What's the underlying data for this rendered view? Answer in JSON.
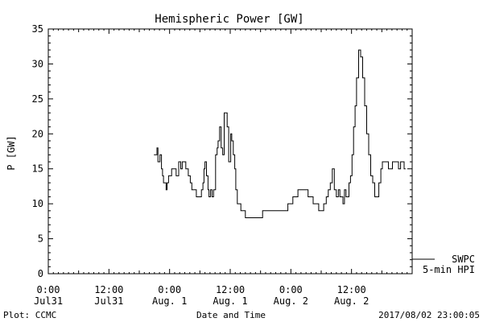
{
  "chart_data": {
    "type": "line",
    "title": "Hemispheric Power [GW]",
    "ylabel": "P [GW]",
    "xlabel": "Date and Time",
    "ylim": [
      0,
      35
    ],
    "yticks": [
      0,
      5,
      10,
      15,
      20,
      25,
      30,
      35
    ],
    "xlim_hours": [
      0,
      72
    ],
    "xticks": [
      {
        "hour": 0,
        "time": "0:00",
        "date": "Jul31"
      },
      {
        "hour": 12,
        "time": "12:00",
        "date": "Jul31"
      },
      {
        "hour": 24,
        "time": "0:00",
        "date": "Aug. 1"
      },
      {
        "hour": 36,
        "time": "12:00",
        "date": "Aug. 1"
      },
      {
        "hour": 48,
        "time": "0:00",
        "date": "Aug. 2"
      },
      {
        "hour": 60,
        "time": "12:00",
        "date": "Aug. 2"
      }
    ],
    "series": [
      {
        "name": "5-min HPI",
        "x": [
          20.9,
          21.3,
          21.5,
          21.7,
          21.9,
          22.1,
          22.4,
          22.6,
          22.8,
          23.0,
          23.3,
          23.5,
          23.8,
          24.1,
          24.4,
          24.7,
          25.1,
          25.3,
          25.5,
          25.8,
          26.2,
          26.5,
          26.9,
          27.2,
          27.7,
          28.1,
          28.4,
          28.8,
          29.3,
          29.7,
          30.3,
          30.6,
          30.8,
          31.0,
          31.3,
          31.6,
          31.8,
          32.1,
          32.4,
          32.7,
          33.1,
          33.4,
          33.6,
          33.9,
          34.2,
          34.5,
          34.8,
          35.1,
          35.4,
          35.7,
          36.1,
          36.3,
          36.6,
          36.9,
          37.1,
          37.4,
          37.7,
          38.1,
          38.4,
          38.7,
          39.0,
          39.4,
          39.8,
          40.2,
          40.6,
          41.1,
          41.7,
          42.4,
          43.4,
          44.4,
          45.4,
          46.4,
          47.4,
          48.4,
          49.4,
          50.4,
          51.4,
          52.4,
          53.0,
          53.5,
          54.0,
          54.5,
          55.0,
          55.4,
          55.8,
          56.2,
          56.6,
          57.0,
          57.4,
          57.7,
          58.0,
          58.3,
          58.6,
          58.9,
          59.2,
          59.5,
          59.8,
          60.1,
          60.4,
          60.7,
          61.0,
          61.4,
          61.8,
          62.2,
          62.6,
          63.0,
          63.4,
          63.8,
          64.2,
          64.6,
          65.0,
          65.4,
          65.8,
          66.1,
          66.5,
          66.9,
          67.3,
          67.7,
          68.1,
          68.5,
          68.9,
          69.3,
          69.7,
          70.1,
          70.4,
          70.7
        ],
        "y": [
          17,
          17,
          18,
          16,
          16,
          17,
          15,
          14,
          13,
          13,
          12,
          13,
          14,
          14,
          15,
          15,
          15,
          14,
          14,
          16,
          15,
          16,
          16,
          15,
          14,
          13,
          12,
          12,
          11,
          11,
          12,
          13,
          15,
          16,
          14,
          12,
          11,
          12,
          11,
          12,
          17,
          18,
          19,
          21,
          18,
          17,
          23,
          23,
          21,
          16,
          20,
          19,
          17,
          15,
          12,
          10,
          10,
          9,
          9,
          9,
          8,
          8,
          8,
          8,
          8,
          8,
          8,
          9,
          9,
          9,
          9,
          9,
          10,
          11,
          12,
          12,
          11,
          10,
          10,
          9,
          9,
          10,
          11,
          12,
          13,
          15,
          12,
          11,
          12,
          11,
          11,
          10,
          12,
          11,
          11,
          13,
          14,
          17,
          21,
          24,
          28,
          32,
          31,
          28,
          24,
          20,
          17,
          14,
          13,
          11,
          11,
          13,
          15,
          16,
          16,
          16,
          15,
          15,
          16,
          16,
          16,
          15,
          16,
          16,
          15,
          15
        ]
      }
    ],
    "legend": [
      "SWPC",
      "5-min HPI"
    ],
    "legend_position": "bottom-right"
  },
  "footer": {
    "left": "Plot: CCMC",
    "center": "Date and Time",
    "right": "2017/08/02 23:00:05"
  }
}
